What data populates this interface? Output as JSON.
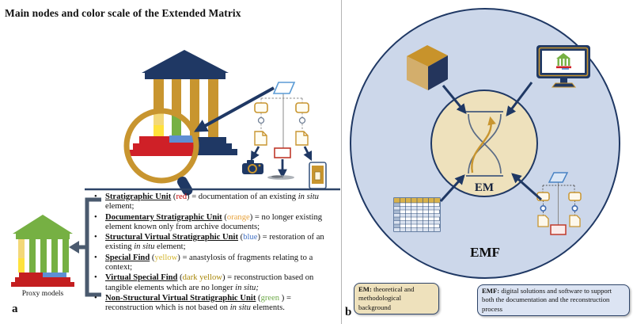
{
  "figure": {
    "panel_a": {
      "panel_label": "a",
      "title": "Main nodes and color scale of the Extended Matrix",
      "proxy_models_label": "Proxy models",
      "legend_items": [
        {
          "term": "Stratigraphic Unit",
          "color_word": "red",
          "color": "#c00000",
          "desc": "= documentation of an existing *in situ* element;"
        },
        {
          "term": "Documentary Stratigraphic Unit",
          "color_word": "orange",
          "color": "#e8a33d",
          "desc": "= no longer existing element known only from archive documents;"
        },
        {
          "term": "Structural Virtual Stratigraphic Unit",
          "color_word": "blue",
          "color": "#4472c4",
          "desc": "= restoration of an existing *in situ* element;"
        },
        {
          "term": "Special Find",
          "color_word": "yellow",
          "color": "#d4b630",
          "desc": "= anastylosis of fragments relating to a context;"
        },
        {
          "term": "Virtual Special Find",
          "color_word": "dark yellow",
          "color": "#a8870a",
          "desc": "= reconstruction based on tangible elements which are no longer *in situ;*"
        },
        {
          "term": "Non-Structural Virtual Stratigraphic Unit",
          "color_word": "green",
          "color": "#6faa4a",
          "space_after_color": true,
          "desc": "= reconstruction which is not based on *in situ* elements."
        }
      ],
      "icons": [
        "temple-icon",
        "magnifier-icon",
        "flowchart-diagram",
        "camera-icon",
        "artifact-photo-icon",
        "tablet-icon",
        "proxy-temple-icon",
        "brace-arrow-icon"
      ]
    },
    "panel_b": {
      "panel_label": "b",
      "em_label": "EM",
      "emf_label": "EMF",
      "em_box": {
        "prefix": "EM:",
        "text": " theoretical and methodological background"
      },
      "emf_box": {
        "prefix": "EMF:",
        "text": " digital solutions and software to support both the documentation and the reconstruction process"
      },
      "icons": [
        "cube-icon",
        "monitor-icon",
        "spreadsheet-icon",
        "mini-flowchart-icon",
        "hourglass-icon",
        "inward-arrow-icon"
      ]
    },
    "colors": {
      "navy": "#1f3864",
      "gold": "#c8952f",
      "red": "#cf2027",
      "blue": "#5e8fd3",
      "green": "#76b043",
      "yellow": "#ffe23c",
      "pale_yellow": "#f3d878",
      "emf_circle_fill": "#ccd7ea",
      "em_circle_fill": "#eee1bc"
    }
  }
}
